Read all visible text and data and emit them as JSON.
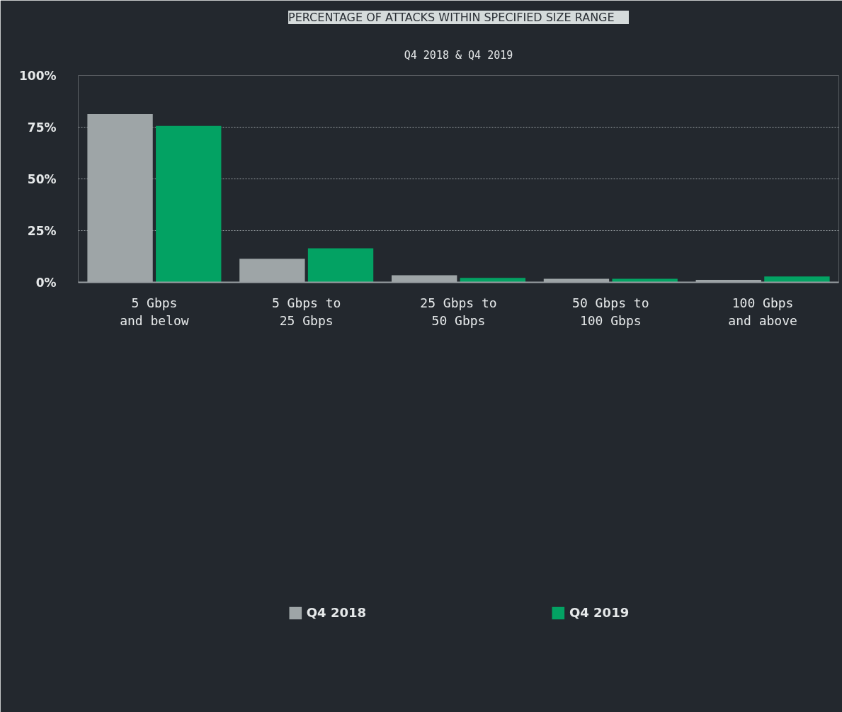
{
  "chart_data": {
    "type": "bar",
    "title": "PERCENTAGE OF ATTACKS WITHIN SPECIFIED SIZE RANGE",
    "subtitle": "Q4 2018 & Q4 2019",
    "categories": [
      "5 Gbps\nand below",
      "5 Gbps to\n25 Gbps",
      "25 Gbps to\n50 Gbps",
      "50 Gbps to\n100 Gbps",
      "100 Gbps\nand above"
    ],
    "series": [
      {
        "name": "Q4 2018",
        "color": "#9ea5a7",
        "values": [
          81.3,
          11.4,
          3.4,
          1.7,
          1.2
        ]
      },
      {
        "name": "Q4 2019",
        "color": "#03a263",
        "values": [
          75.6,
          16.4,
          2.1,
          1.7,
          2.8
        ]
      }
    ],
    "ylim": [
      0,
      100
    ],
    "yticks": [
      {
        "value": 0,
        "label": "0%"
      },
      {
        "value": 25,
        "label": "25%"
      },
      {
        "value": 50,
        "label": "50%"
      },
      {
        "value": 75,
        "label": "75%"
      },
      {
        "value": 100,
        "label": "100%"
      }
    ],
    "grid": "y",
    "legend": "bottom"
  }
}
